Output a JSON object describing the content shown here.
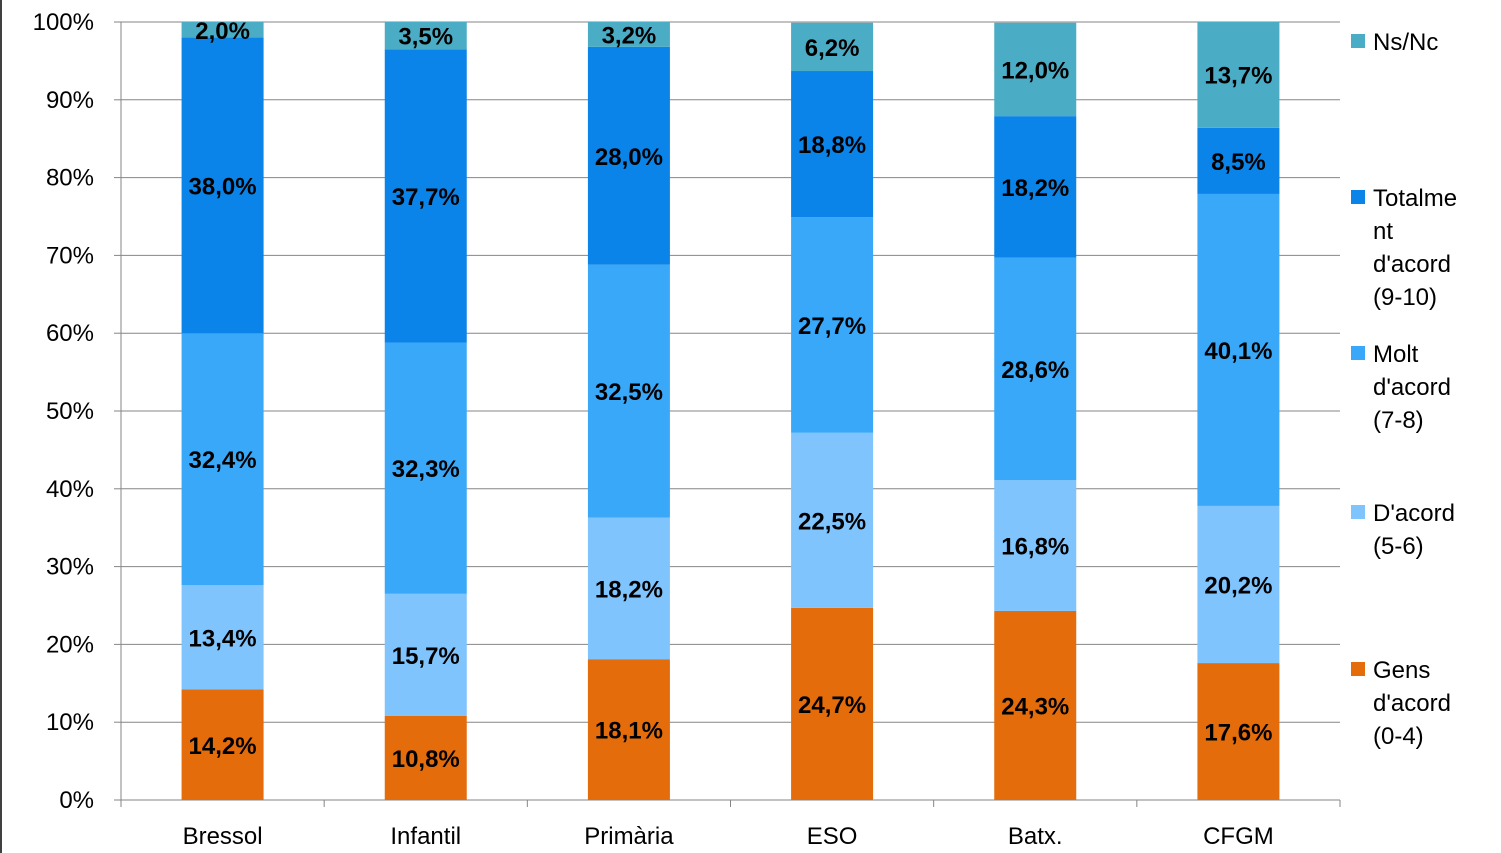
{
  "chart_data": {
    "type": "bar",
    "stacked": true,
    "percent_stacked": true,
    "categories": [
      "Bressol",
      "Infantil",
      "Primària",
      "ESO",
      "Batx.",
      "CFGM"
    ],
    "series": [
      {
        "name": "Gens d'acord (0-4)",
        "color": "#E46C0A",
        "values": [
          14.2,
          10.8,
          18.1,
          24.7,
          24.3,
          17.6
        ],
        "labels": [
          "14,2%",
          "10,8%",
          "18,1%",
          "24,7%",
          "24,3%",
          "17,6%"
        ]
      },
      {
        "name": "D'acord (5-6)",
        "color": "#7FC4FD",
        "values": [
          13.4,
          15.7,
          18.2,
          22.5,
          16.8,
          20.2
        ],
        "labels": [
          "13,4%",
          "15,7%",
          "18,2%",
          "22,5%",
          "16,8%",
          "20,2%"
        ]
      },
      {
        "name": "Molt d'acord (7-8)",
        "color": "#3AA8F9",
        "values": [
          32.4,
          32.3,
          32.5,
          27.7,
          28.6,
          40.1
        ],
        "labels": [
          "32,4%",
          "32,3%",
          "32,5%",
          "27,7%",
          "28,6%",
          "40,1%"
        ]
      },
      {
        "name": "Totalment d'acord (9-10)",
        "color": "#0A84E8",
        "values": [
          38.0,
          37.7,
          28.0,
          18.8,
          18.2,
          8.5
        ],
        "labels": [
          "38,0%",
          "37,7%",
          "28,0%",
          "18,8%",
          "18,2%",
          "8,5%"
        ]
      },
      {
        "name": "Ns/Nc",
        "color": "#4BACC6",
        "values": [
          2.0,
          3.5,
          3.2,
          6.2,
          12.0,
          13.7
        ],
        "labels": [
          "2,0%",
          "3,5%",
          "3,2%",
          "6,2%",
          "12,0%",
          "13,7%"
        ]
      }
    ],
    "ylim": [
      0,
      100
    ],
    "y_ticks": [
      "0%",
      "10%",
      "20%",
      "30%",
      "40%",
      "50%",
      "60%",
      "70%",
      "80%",
      "90%",
      "100%"
    ],
    "grid": true,
    "legend_position": "right",
    "legend": [
      {
        "lines": [
          "Ns/Nc"
        ],
        "color": "#4BACC6"
      },
      {
        "lines": [
          "Totalme",
          "nt",
          "d'acord",
          "(9-10)"
        ],
        "color": "#0A84E8"
      },
      {
        "lines": [
          "Molt",
          "d'acord",
          "(7-8)"
        ],
        "color": "#3AA8F9"
      },
      {
        "lines": [
          "D'acord",
          "(5-6)"
        ],
        "color": "#7FC4FD"
      },
      {
        "lines": [
          "Gens",
          "d'acord",
          "(0-4)"
        ],
        "color": "#E46C0A"
      }
    ]
  }
}
